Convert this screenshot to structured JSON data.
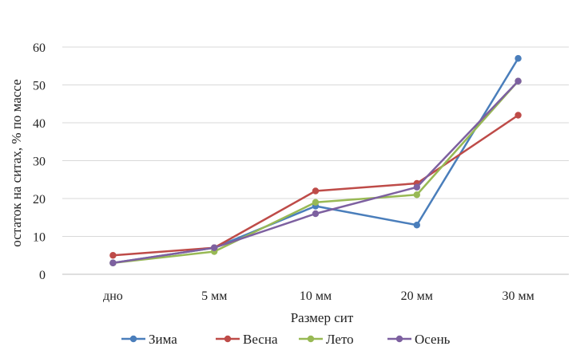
{
  "chart_data": {
    "type": "line",
    "title": "",
    "xlabel": "Размер сит",
    "ylabel": "остаток на ситах, % по массе",
    "categories": [
      "дно",
      "5 мм",
      "10 мм",
      "20 мм",
      "30 мм"
    ],
    "ylim": [
      0,
      60
    ],
    "yticks": [
      0,
      10,
      20,
      30,
      40,
      50,
      60
    ],
    "grid": true,
    "legend_position": "bottom",
    "series": [
      {
        "name": "Зима",
        "color": "#4a7ebb",
        "values": [
          3,
          7,
          18,
          13,
          57
        ]
      },
      {
        "name": "Весна",
        "color": "#be4b48",
        "values": [
          5,
          7,
          22,
          24,
          42
        ]
      },
      {
        "name": "Лето",
        "color": "#98b954",
        "values": [
          3,
          6,
          19,
          21,
          51
        ]
      },
      {
        "name": "Осень",
        "color": "#7d60a0",
        "values": [
          3,
          7,
          16,
          23,
          51
        ]
      }
    ]
  }
}
